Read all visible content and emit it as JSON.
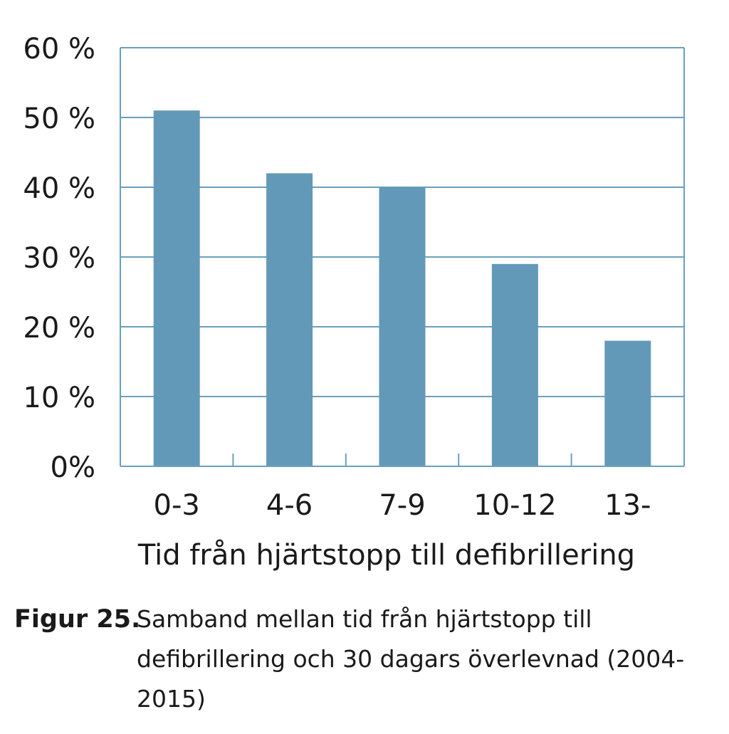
{
  "chart_data": {
    "type": "bar",
    "categories": [
      "0-3",
      "4-6",
      "7-9",
      "10-12",
      "13-"
    ],
    "values": [
      51,
      42,
      40,
      29,
      18
    ],
    "xlabel": "Tid från hjärtstopp till defibrillering",
    "ylabel": "",
    "ylim": [
      0,
      60
    ],
    "yticks": [
      0,
      10,
      20,
      30,
      40,
      50,
      60
    ],
    "ytick_labels": [
      "0%",
      "10 %",
      "20 %",
      "30 %",
      "40 %",
      "50 %",
      "60 %"
    ],
    "grid": "horizontal",
    "bar_color": "#6399b8",
    "axis_color": "#6a9fc0"
  },
  "caption": {
    "label": "Figur 25.",
    "text": "Samband mellan tid från hjärtstopp till defibrillering och 30 dagars överlevnad (2004-2015)"
  }
}
